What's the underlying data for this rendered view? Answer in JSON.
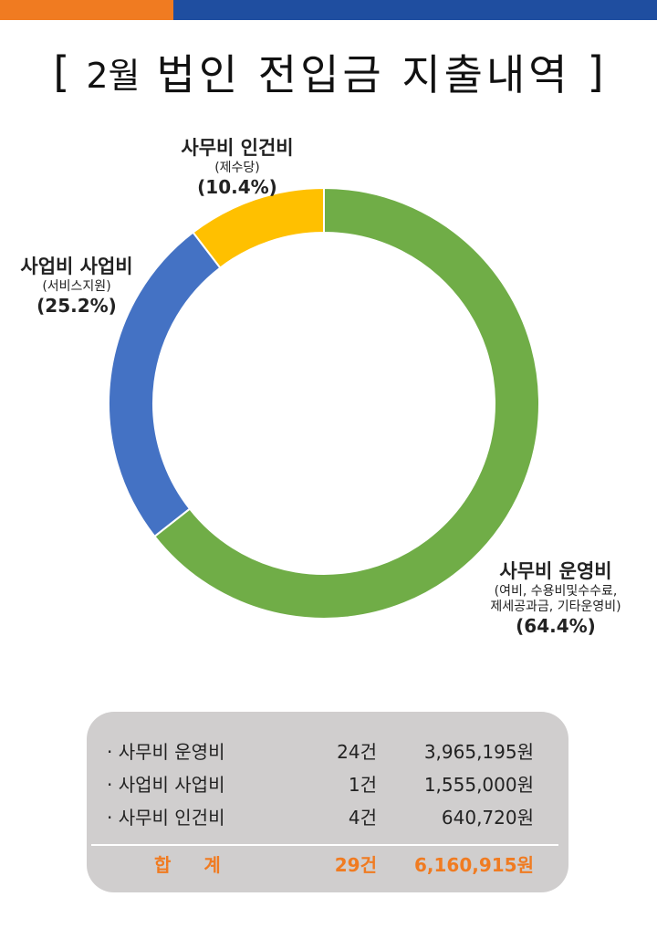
{
  "header": {
    "colors": {
      "orange": "#f07b21",
      "blue": "#1f4ea0"
    }
  },
  "title": {
    "open_bracket": "[",
    "month": "2월",
    "main": "법인 전입금 지출내역",
    "close_bracket": "]"
  },
  "chart_data": {
    "type": "pie",
    "style": "donut",
    "categories": [
      "사무비 운영비",
      "사업비 사업비",
      "사무비 인건비"
    ],
    "details": [
      "(여비, 수용비및수수료, 제세공과금, 기타운영비)",
      "(서비스지원)",
      "(제수당)"
    ],
    "detail_lines": [
      [
        "(여비, 수용비및수수료,",
        "제세공과금, 기타운영비)"
      ],
      [
        "(서비스지원)"
      ],
      [
        "(제수당)"
      ]
    ],
    "values": [
      64.4,
      25.2,
      10.4
    ],
    "percent_labels": [
      "(64.4%)",
      "(25.2%)",
      "(10.4%)"
    ],
    "colors": [
      "#70ad47",
      "#4472c4",
      "#ffc000"
    ],
    "start": "top",
    "direction": "clockwise"
  },
  "summary": {
    "rows": [
      {
        "name": "· 사무비 운영비",
        "count": "24건",
        "amount": "3,965,195원"
      },
      {
        "name": "· 사업비 사업비",
        "count": "1건",
        "amount": "1,555,000원"
      },
      {
        "name": "· 사무비 인건비",
        "count": "4건",
        "amount": "640,720원"
      }
    ],
    "total": {
      "label_1": "합",
      "label_2": "계",
      "count": "29건",
      "amount": "6,160,915원"
    },
    "colors": {
      "total_text": "#f07b21",
      "background": "#d0cece"
    }
  }
}
